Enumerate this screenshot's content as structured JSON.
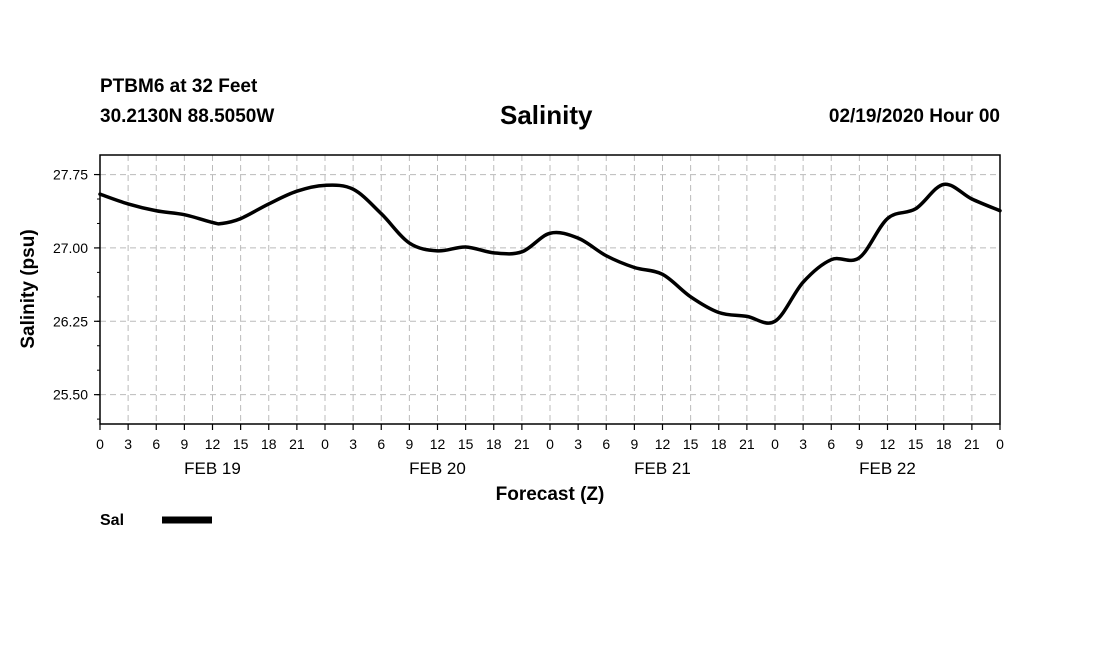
{
  "header": {
    "station": "PTBM6 at 32 Feet",
    "coords": "30.2130N 88.5050W",
    "title": "Salinity",
    "datetime": "02/19/2020 Hour 00"
  },
  "chart_data": {
    "type": "line",
    "title": "Salinity",
    "xlabel": "Forecast (Z)",
    "ylabel": "Salinity (psu)",
    "xlim": [
      0,
      96
    ],
    "ylim": [
      25.2,
      27.95
    ],
    "yticks": [
      25.5,
      26.25,
      27.0,
      27.75
    ],
    "ytick_labels": [
      "25.50",
      "26.25",
      "27.00",
      "27.75"
    ],
    "xtick_values": [
      0,
      3,
      6,
      9,
      12,
      15,
      18,
      21,
      24,
      27,
      30,
      33,
      36,
      39,
      42,
      45,
      48,
      51,
      54,
      57,
      60,
      63,
      66,
      69,
      72,
      75,
      78,
      81,
      84,
      87,
      90,
      93,
      96
    ],
    "xtick_labels": [
      "0",
      "3",
      "6",
      "9",
      "12",
      "15",
      "18",
      "21",
      "0",
      "3",
      "6",
      "9",
      "12",
      "15",
      "18",
      "21",
      "0",
      "3",
      "6",
      "9",
      "12",
      "15",
      "18",
      "21",
      "0",
      "3",
      "6",
      "9",
      "12",
      "15",
      "18",
      "21",
      "0"
    ],
    "date_labels": [
      {
        "x": 12,
        "label": "FEB 19"
      },
      {
        "x": 36,
        "label": "FEB 20"
      },
      {
        "x": 60,
        "label": "FEB 21"
      },
      {
        "x": 84,
        "label": "FEB 22"
      }
    ],
    "grid": true,
    "series": [
      {
        "name": "Sal",
        "color": "#000000",
        "x": [
          0,
          3,
          6,
          9,
          12,
          13,
          15,
          18,
          21,
          24,
          27,
          30,
          33,
          36,
          39,
          42,
          45,
          48,
          51,
          54,
          57,
          60,
          63,
          66,
          69,
          72,
          75,
          78,
          81,
          84,
          87,
          90,
          93,
          96
        ],
        "y": [
          27.55,
          27.45,
          27.38,
          27.34,
          27.26,
          27.25,
          27.3,
          27.45,
          27.58,
          27.64,
          27.6,
          27.35,
          27.05,
          26.97,
          27.01,
          26.95,
          26.96,
          27.15,
          27.1,
          26.92,
          26.8,
          26.73,
          26.5,
          26.34,
          26.3,
          26.25,
          26.65,
          26.88,
          26.9,
          27.3,
          27.4,
          27.65,
          27.5,
          27.38
        ]
      }
    ],
    "legend": {
      "label": "Sal",
      "position": "bottom-left"
    }
  }
}
